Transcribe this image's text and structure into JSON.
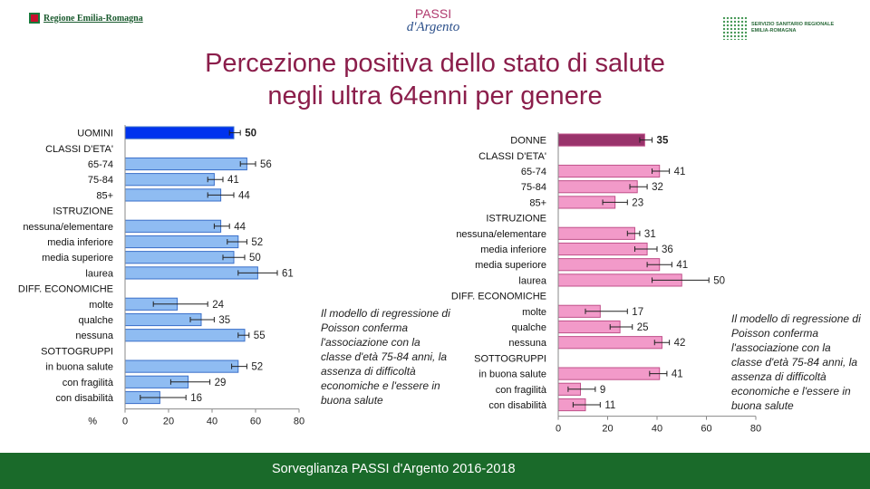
{
  "header": {
    "left_logo_text": "Regione Emilia-Romagna",
    "center_logo_top": "PASSI",
    "center_logo_bottom": "d'Argento",
    "right_logo_line1": "SERVIZIO SANITARIO REGIONALE",
    "right_logo_line2": "EMILIA-ROMAGNA"
  },
  "title_line1": "Percezione positiva dello stato di salute",
  "title_line2": "negli ultra 64enni per genere",
  "note_left": "Il modello di regressione di Poisson conferma l'associazione con la classe d'età 75-84 anni, la assenza di difficoltà economiche e l'essere in buona salute",
  "note_right": "Il modello di regressione di Poisson conferma l'associazione con la classe d'età 75-84 anni, la assenza di difficoltà economiche e l'essere in buona salute",
  "footer": "Sorveglianza PASSI d'Argento 2016-2018",
  "colors": {
    "title": "#8b1e4b",
    "men_total": "#0033ee",
    "men_bar": "#8fbcf2",
    "women_total": "#99336b",
    "women_bar": "#f29ac9",
    "footer": "#1a6a2a"
  },
  "chart_data": [
    {
      "type": "bar",
      "orientation": "horizontal",
      "rows": [
        {
          "label": "UOMINI",
          "value": 50,
          "kind": "total",
          "lo": 48,
          "hi": 53
        },
        {
          "label": "CLASSI D'ETA'",
          "value": null,
          "kind": "header"
        },
        {
          "label": "65-74",
          "value": 56,
          "kind": "bar",
          "lo": 53,
          "hi": 60
        },
        {
          "label": "75-84",
          "value": 41,
          "kind": "bar",
          "lo": 38,
          "hi": 45
        },
        {
          "label": "85+",
          "value": 44,
          "kind": "bar",
          "lo": 38,
          "hi": 50
        },
        {
          "label": "ISTRUZIONE",
          "value": null,
          "kind": "header"
        },
        {
          "label": "nessuna/elementare",
          "value": 44,
          "kind": "bar",
          "lo": 41,
          "hi": 48
        },
        {
          "label": "media inferiore",
          "value": 52,
          "kind": "bar",
          "lo": 47,
          "hi": 56
        },
        {
          "label": "media superiore",
          "value": 50,
          "kind": "bar",
          "lo": 45,
          "hi": 55
        },
        {
          "label": "laurea",
          "value": 61,
          "kind": "bar",
          "lo": 52,
          "hi": 70
        },
        {
          "label": "DIFF. ECONOMICHE",
          "value": null,
          "kind": "header"
        },
        {
          "label": "molte",
          "value": 24,
          "kind": "bar",
          "lo": 13,
          "hi": 38
        },
        {
          "label": "qualche",
          "value": 35,
          "kind": "bar",
          "lo": 30,
          "hi": 41
        },
        {
          "label": "nessuna",
          "value": 55,
          "kind": "bar",
          "lo": 52,
          "hi": 57
        },
        {
          "label": "SOTTOGRUPPI",
          "value": null,
          "kind": "header"
        },
        {
          "label": "in buona salute",
          "value": 52,
          "kind": "bar",
          "lo": 49,
          "hi": 56
        },
        {
          "label": "con fragilità",
          "value": 29,
          "kind": "bar",
          "lo": 21,
          "hi": 39
        },
        {
          "label": "con disabilità",
          "value": 16,
          "kind": "bar",
          "lo": 7,
          "hi": 28
        }
      ],
      "axis_label": "%",
      "xlim": [
        0,
        80
      ],
      "ticks": [
        0,
        20,
        40,
        60,
        80
      ]
    },
    {
      "type": "bar",
      "orientation": "horizontal",
      "rows": [
        {
          "label": "DONNE",
          "value": 35,
          "kind": "total",
          "lo": 33,
          "hi": 38
        },
        {
          "label": "CLASSI D'ETA'",
          "value": null,
          "kind": "header"
        },
        {
          "label": "65-74",
          "value": 41,
          "kind": "bar",
          "lo": 38,
          "hi": 45
        },
        {
          "label": "75-84",
          "value": 32,
          "kind": "bar",
          "lo": 29,
          "hi": 36
        },
        {
          "label": "85+",
          "value": 23,
          "kind": "bar",
          "lo": 18,
          "hi": 28
        },
        {
          "label": "ISTRUZIONE",
          "value": null,
          "kind": "header"
        },
        {
          "label": "nessuna/elementare",
          "value": 31,
          "kind": "bar",
          "lo": 28,
          "hi": 33
        },
        {
          "label": "media inferiore",
          "value": 36,
          "kind": "bar",
          "lo": 31,
          "hi": 40
        },
        {
          "label": "media superiore",
          "value": 41,
          "kind": "bar",
          "lo": 36,
          "hi": 46
        },
        {
          "label": "laurea",
          "value": 50,
          "kind": "bar",
          "lo": 38,
          "hi": 61
        },
        {
          "label": "DIFF. ECONOMICHE",
          "value": null,
          "kind": "header"
        },
        {
          "label": "molte",
          "value": 17,
          "kind": "bar",
          "lo": 11,
          "hi": 28
        },
        {
          "label": "qualche",
          "value": 25,
          "kind": "bar",
          "lo": 21,
          "hi": 30
        },
        {
          "label": "nessuna",
          "value": 42,
          "kind": "bar",
          "lo": 39,
          "hi": 45
        },
        {
          "label": "SOTTOGRUPPI",
          "value": null,
          "kind": "header"
        },
        {
          "label": "in buona salute",
          "value": 41,
          "kind": "bar",
          "lo": 37,
          "hi": 44
        },
        {
          "label": "con fragilità",
          "value": 9,
          "kind": "bar",
          "lo": 4,
          "hi": 15
        },
        {
          "label": "con disabilità",
          "value": 11,
          "kind": "bar",
          "lo": 6,
          "hi": 17
        }
      ],
      "axis_label": "",
      "xlim": [
        0,
        80
      ],
      "ticks": [
        0,
        20,
        40,
        60,
        80
      ]
    }
  ]
}
